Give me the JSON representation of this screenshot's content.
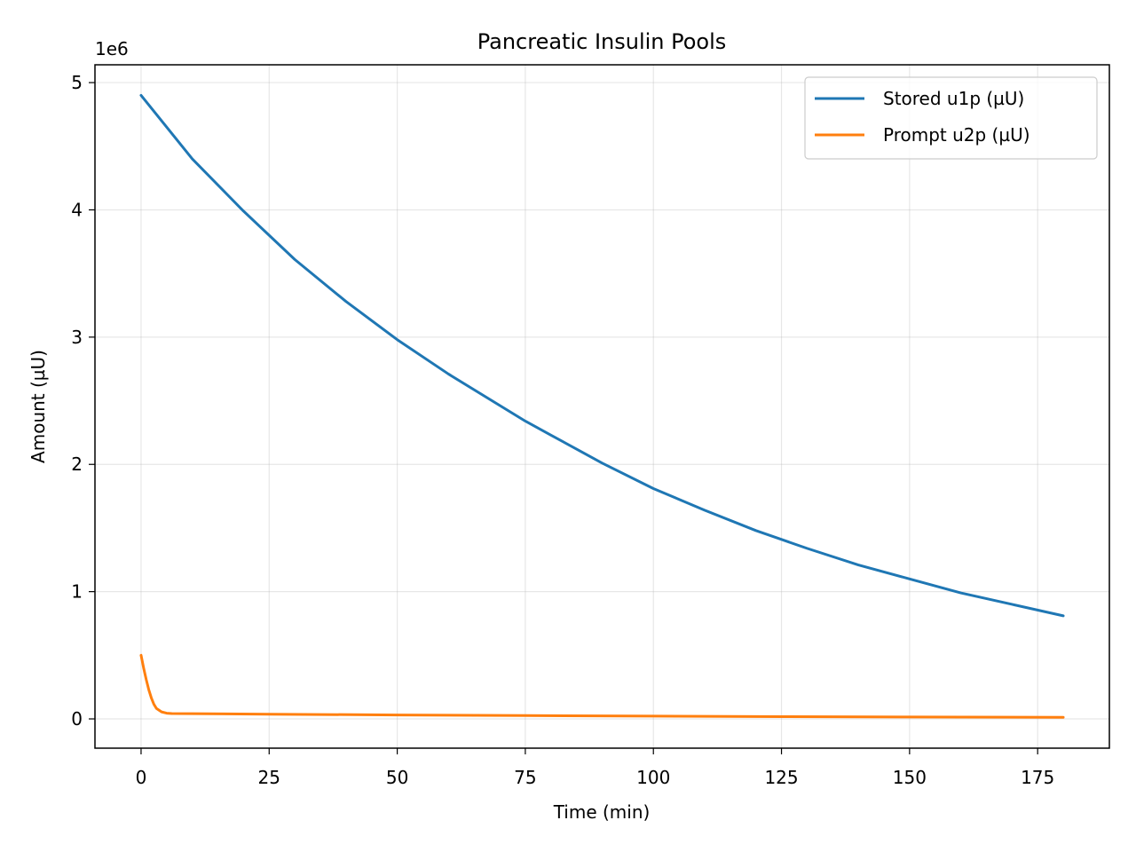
{
  "chart_data": {
    "type": "line",
    "title": "Pancreatic Insulin Pools",
    "xlabel": "Time (min)",
    "ylabel": "Amount (µU)",
    "y_offset_text": "1e6",
    "y_scale": 1000000,
    "xlim": [
      -9,
      189
    ],
    "ylim": [
      -230000,
      5140000
    ],
    "x_ticks": [
      0,
      25,
      50,
      75,
      100,
      125,
      150,
      175
    ],
    "y_ticks": [
      0,
      1,
      2,
      3,
      4,
      5
    ],
    "grid": true,
    "legend_position": "top-right",
    "series": [
      {
        "name": "Stored u1p (µU)",
        "color": "#1f77b4",
        "x": [
          0,
          10,
          20,
          25,
          30,
          40,
          50,
          60,
          75,
          80,
          90,
          100,
          110,
          120,
          125,
          130,
          140,
          150,
          160,
          170,
          180
        ],
        "y": [
          4900000,
          4400000,
          3990000,
          3800000,
          3610000,
          3280000,
          2980000,
          2710000,
          2340000,
          2230000,
          2010000,
          1810000,
          1640000,
          1480000,
          1410000,
          1340000,
          1210000,
          1100000,
          990000,
          900000,
          810000
        ]
      },
      {
        "name": "Prompt u2p (µU)",
        "color": "#ff7f0e",
        "x": [
          0,
          0.5,
          1,
          1.5,
          2,
          2.5,
          3,
          4,
          5,
          6,
          10,
          25,
          50,
          75,
          100,
          125,
          150,
          180
        ],
        "y": [
          500000,
          400000,
          310000,
          230000,
          165000,
          115000,
          82000,
          55000,
          45000,
          42000,
          41000,
          37000,
          31000,
          26000,
          22000,
          18000,
          15000,
          12000
        ]
      }
    ]
  }
}
